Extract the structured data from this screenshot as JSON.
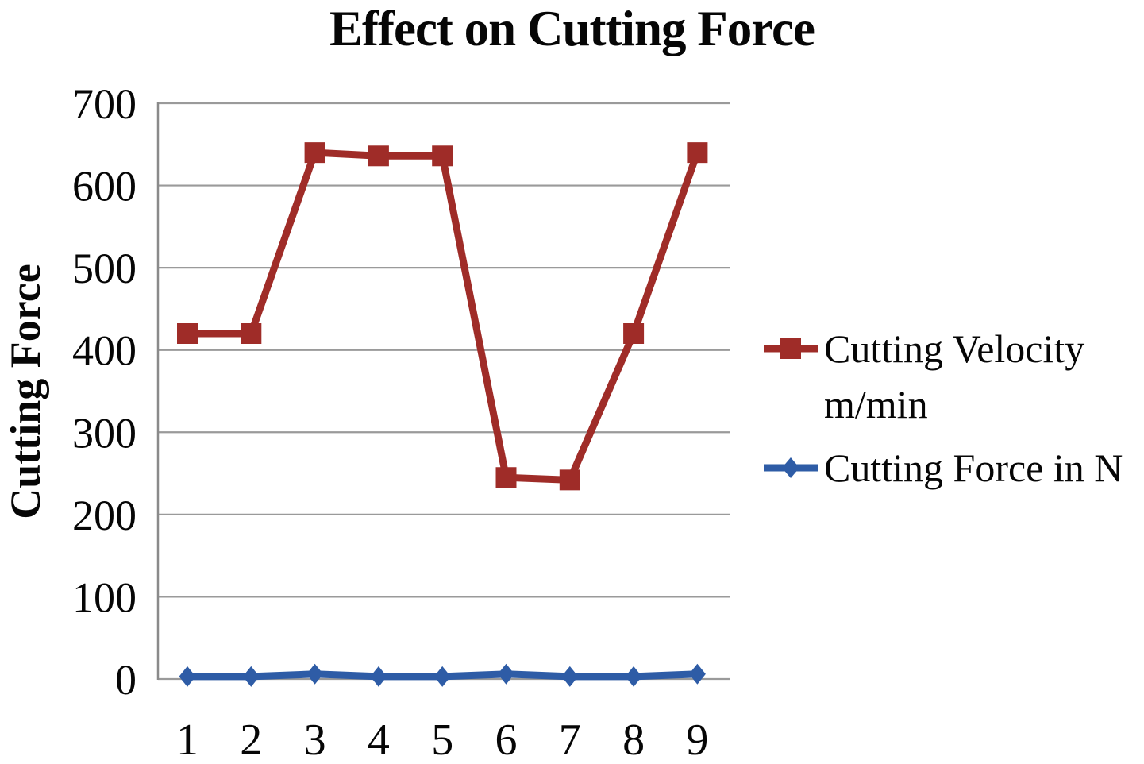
{
  "chart_data": {
    "type": "line",
    "title": "Effect on Cutting Force",
    "ylabel": "Cutting Force",
    "xlabel": "",
    "categories": [
      "1",
      "2",
      "3",
      "4",
      "5",
      "6",
      "7",
      "8",
      "9"
    ],
    "series": [
      {
        "name": "Cutting Velocity m/min",
        "marker": "square",
        "color": "#9F2C28",
        "values": [
          420,
          420,
          640,
          636,
          636,
          245,
          242,
          420,
          640
        ]
      },
      {
        "name": "Cutting Force in N",
        "marker": "diamond",
        "color": "#2E5CA6",
        "values": [
          3,
          3,
          6,
          3,
          3,
          6,
          3,
          3,
          6
        ]
      }
    ],
    "ylim": [
      0,
      700
    ],
    "yticks": [
      0,
      100,
      200,
      300,
      400,
      500,
      600,
      700
    ],
    "grid": "horizontal",
    "legend_position": "right"
  },
  "colors": {
    "gridline": "#9A9A9A",
    "axis_line": "#8A8A8A",
    "text": "#060606",
    "background": "#FFFFFF"
  }
}
